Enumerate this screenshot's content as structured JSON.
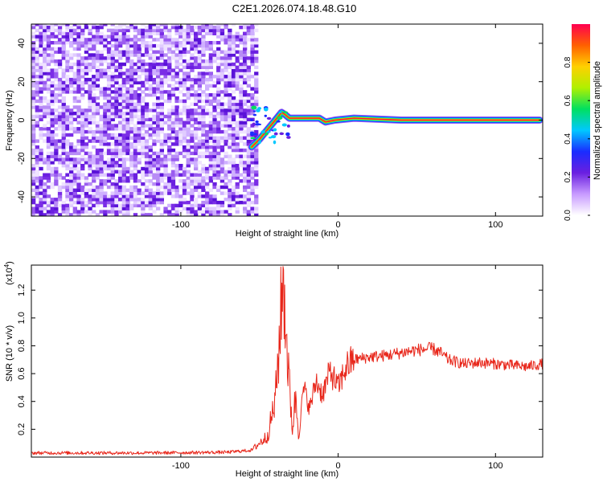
{
  "title": "C2E1.2026.074.18.48.G10",
  "chart_data": [
    {
      "type": "heatmap",
      "xlabel": "Height of straight line (km)",
      "ylabel": "Frequency (Hz)",
      "xlim": [
        -195,
        130
      ],
      "ylim": [
        -50,
        50
      ],
      "x_ticks": [
        -100,
        0,
        100
      ],
      "x_tick_labels": [
        "-100",
        "0",
        "100"
      ],
      "y_ticks": [
        -40,
        -20,
        0,
        20,
        40
      ],
      "y_tick_labels": [
        "-40",
        "-20",
        "0",
        "20",
        "40"
      ],
      "noise_region_x": [
        -195,
        -52
      ],
      "signal_trace": [
        {
          "x": -55,
          "y": -14
        },
        {
          "x": -50,
          "y": -10
        },
        {
          "x": -46,
          "y": -6
        },
        {
          "x": -42,
          "y": -2
        },
        {
          "x": -39,
          "y": 1
        },
        {
          "x": -36,
          "y": 4
        },
        {
          "x": -34,
          "y": 3
        },
        {
          "x": -31,
          "y": 1
        },
        {
          "x": -28,
          "y": 1
        },
        {
          "x": -20,
          "y": 1
        },
        {
          "x": -12,
          "y": 1
        },
        {
          "x": -8,
          "y": -1
        },
        {
          "x": -2,
          "y": 0
        },
        {
          "x": 10,
          "y": 1
        },
        {
          "x": 40,
          "y": 0
        },
        {
          "x": 80,
          "y": 0
        },
        {
          "x": 128,
          "y": 0
        }
      ],
      "colorbar": {
        "label": "Normalized spectral amplitude",
        "range": [
          0,
          1
        ],
        "ticks": [
          0.0,
          0.2,
          0.4,
          0.6,
          0.8
        ],
        "tick_labels": [
          "0.0",
          "0.2",
          "0.4",
          "0.6",
          "0.8"
        ],
        "colors": [
          "#ffffff",
          "#c89bff",
          "#6a1fe0",
          "#1a2cff",
          "#00c8ff",
          "#00e060",
          "#b0f000",
          "#ffd000",
          "#ff6000",
          "#ff0050"
        ]
      }
    },
    {
      "type": "line",
      "xlabel": "Height of straight line (km)",
      "ylabel": "SNR (10 * v/v)",
      "scale_label": "(x10",
      "scale_exponent": "4",
      "scale_close": ")",
      "xlim": [
        -195,
        130
      ],
      "ylim": [
        0,
        1.38
      ],
      "x_ticks": [
        -100,
        0,
        100
      ],
      "x_tick_labels": [
        "-100",
        "0",
        "100"
      ],
      "y_ticks": [
        0.2,
        0.4,
        0.6,
        0.8,
        1.0,
        1.2
      ],
      "y_tick_labels": [
        "0.2",
        "0.4",
        "0.6",
        "0.8",
        "1.0",
        "1.2"
      ],
      "line_color": "#e8261a",
      "series": [
        {
          "x": [
            -195,
            -120,
            -70,
            -55,
            -45,
            -40,
            -37,
            -35,
            -33,
            -31,
            -29,
            -27,
            -25,
            -22,
            -18,
            -14,
            -10,
            -5,
            0,
            5,
            10,
            20,
            30,
            40,
            50,
            60,
            65,
            70,
            80,
            90,
            100,
            110,
            120,
            130
          ],
          "y": [
            0.03,
            0.03,
            0.035,
            0.05,
            0.15,
            0.4,
            0.9,
            1.35,
            0.9,
            0.5,
            0.2,
            0.45,
            0.15,
            0.5,
            0.35,
            0.55,
            0.45,
            0.62,
            0.5,
            0.65,
            0.7,
            0.72,
            0.73,
            0.75,
            0.77,
            0.78,
            0.75,
            0.7,
            0.67,
            0.68,
            0.67,
            0.66,
            0.65,
            0.67
          ]
        }
      ]
    }
  ]
}
